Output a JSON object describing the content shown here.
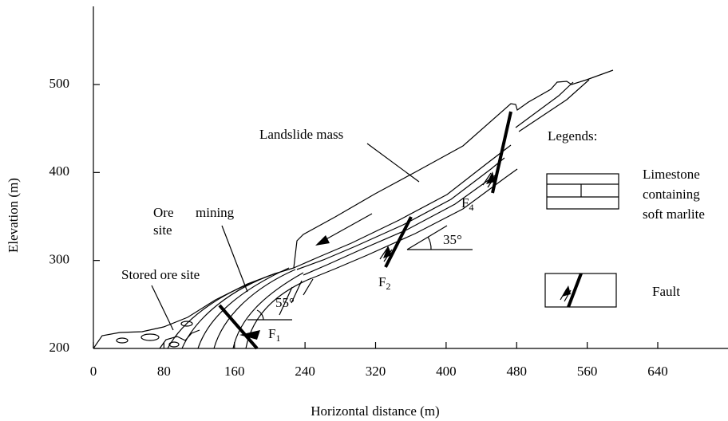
{
  "axes": {
    "x_label": "Horizontal distance (m)",
    "y_label": "Elevation (m)",
    "xlim": [
      0,
      640
    ],
    "ylim": [
      200,
      500
    ],
    "xticks": [
      0,
      80,
      160,
      240,
      320,
      400,
      480,
      560,
      640
    ],
    "yticks": [
      200,
      300,
      400,
      500
    ]
  },
  "labels": {
    "landslide": "Landslide mass",
    "ore": "Ore",
    "mining": "mining",
    "site": "site",
    "stored": "Stored ore site",
    "angle1": "55°",
    "angle2": "35°",
    "f1": {
      "letter": "F",
      "sub": "1"
    },
    "f2": {
      "letter": "F",
      "sub": "2"
    },
    "f4": {
      "letter": "F",
      "sub": "4"
    }
  },
  "legend": {
    "title": "Legends:",
    "limestone": [
      "Limestone",
      "containing",
      "soft marlite"
    ],
    "fault": "Fault"
  }
}
